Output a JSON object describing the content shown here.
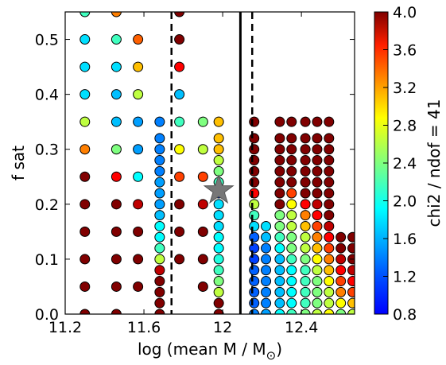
{
  "chart_data": {
    "type": "scatter",
    "xlabel": "log (mean M / M",
    "xlabel_sub": "⊙",
    "xlabel_close": ")",
    "ylabel": "f sat",
    "colorbar_label": "chi2 / ndof = 41",
    "xlim": [
      11.2,
      12.67
    ],
    "ylim": [
      0.0,
      0.55
    ],
    "xticks": [
      "11.2",
      "11.6",
      "12",
      "12.4"
    ],
    "xtick_values": [
      11.2,
      11.6,
      12.0,
      12.4
    ],
    "yticks": [
      "0.0",
      "0.1",
      "0.2",
      "0.3",
      "0.4",
      "0.5"
    ],
    "ytick_values": [
      0.0,
      0.1,
      0.2,
      0.3,
      0.4,
      0.5
    ],
    "colorbar_range": [
      0.8,
      4.0
    ],
    "colorbar_ticks": [
      "0.8",
      "1.2",
      "1.6",
      "2.0",
      "2.4",
      "2.8",
      "3.2",
      "3.6",
      "4.0"
    ],
    "colorbar_tick_values": [
      0.8,
      1.2,
      1.6,
      2.0,
      2.4,
      2.8,
      3.2,
      3.6,
      4.0
    ],
    "colormap": "jet",
    "vlines": [
      {
        "x": 11.74,
        "style": "dashed"
      },
      {
        "x": 12.09,
        "style": "solid"
      },
      {
        "x": 12.15,
        "style": "dashed"
      }
    ],
    "best_fit_marker": {
      "x": 11.98,
      "y": 0.225,
      "shape": "star",
      "color": "#777777"
    },
    "columns": [
      {
        "x": 11.3,
        "y": [
          0.0,
          0.05,
          0.1,
          0.15,
          0.2,
          0.25,
          0.3,
          0.35,
          0.4,
          0.45,
          0.5,
          0.55
        ],
        "c": [
          4.0,
          4.0,
          4.0,
          4.0,
          4.0,
          4.0,
          3.2,
          2.6,
          1.9,
          1.9,
          1.9,
          2.2
        ]
      },
      {
        "x": 11.46,
        "y": [
          0.0,
          0.05,
          0.1,
          0.15,
          0.2,
          0.25,
          0.3,
          0.35,
          0.4,
          0.45,
          0.5,
          0.55
        ],
        "c": [
          4.0,
          4.0,
          4.0,
          4.0,
          4.0,
          3.6,
          2.4,
          1.8,
          1.8,
          1.9,
          2.2,
          3.2
        ]
      },
      {
        "x": 11.57,
        "y": [
          0.05,
          0.1,
          0.15,
          0.2,
          0.25,
          0.3,
          0.35,
          0.4,
          0.45,
          0.5
        ],
        "c": [
          4.0,
          4.0,
          4.0,
          3.8,
          2.0,
          1.7,
          1.7,
          2.6,
          3.0,
          3.3
        ]
      },
      {
        "x": 11.68,
        "y": [
          0.0,
          0.02,
          0.04,
          0.06,
          0.08,
          0.1,
          0.12,
          0.14,
          0.16,
          0.18,
          0.2,
          0.22,
          0.24,
          0.26,
          0.28,
          0.3,
          0.32,
          0.35
        ],
        "c": [
          4.0,
          4.0,
          4.0,
          4.0,
          3.8,
          2.6,
          2.2,
          2.0,
          2.0,
          1.8,
          1.7,
          1.7,
          1.7,
          1.6,
          1.6,
          1.6,
          1.6,
          1.6
        ]
      },
      {
        "x": 11.78,
        "y": [
          0.1,
          0.15,
          0.2,
          0.25,
          0.3,
          0.35,
          0.4,
          0.45,
          0.5,
          0.55
        ],
        "c": [
          4.0,
          4.0,
          4.0,
          3.4,
          2.8,
          2.2,
          1.8,
          3.6,
          4.0,
          4.0
        ]
      },
      {
        "x": 11.9,
        "y": [
          0.05,
          0.1,
          0.15,
          0.2,
          0.25,
          0.3,
          0.35
        ],
        "c": [
          4.0,
          4.0,
          4.0,
          3.8,
          3.4,
          2.6,
          2.4
        ]
      },
      {
        "x": 11.98,
        "y": [
          0.0,
          0.02,
          0.04,
          0.06,
          0.08,
          0.1,
          0.12,
          0.14,
          0.16,
          0.18,
          0.2,
          0.22,
          0.24,
          0.26,
          0.28,
          0.3,
          0.32,
          0.35
        ],
        "c": [
          4.0,
          4.0,
          2.6,
          2.4,
          2.2,
          2.1,
          2.0,
          2.0,
          1.9,
          1.9,
          1.9,
          1.4,
          2.2,
          2.4,
          2.6,
          3.0,
          3.0,
          3.0
        ]
      },
      {
        "x": 12.16,
        "y": [
          0.0,
          0.02,
          0.04,
          0.06,
          0.08,
          0.1,
          0.12,
          0.14,
          0.16,
          0.18,
          0.2,
          0.22,
          0.24,
          0.26,
          0.28,
          0.3,
          0.32,
          0.35
        ],
        "c": [
          1.6,
          1.5,
          1.5,
          1.5,
          1.5,
          1.4,
          1.4,
          1.5,
          1.9,
          2.2,
          2.6,
          3.6,
          4.0,
          4.0,
          4.0,
          4.0,
          4.0,
          4.0
        ]
      },
      {
        "x": 12.22,
        "y": [
          0.0,
          0.02,
          0.04,
          0.06,
          0.08,
          0.1,
          0.12,
          0.14,
          0.16
        ],
        "c": [
          1.7,
          1.6,
          1.6,
          1.6,
          1.6,
          1.6,
          1.6,
          1.8,
          1.9
        ]
      },
      {
        "x": 12.29,
        "y": [
          0.0,
          0.02,
          0.04,
          0.06,
          0.08,
          0.1,
          0.12,
          0.14,
          0.16,
          0.18,
          0.2,
          0.22,
          0.24,
          0.26,
          0.28,
          0.3,
          0.32,
          0.35
        ],
        "c": [
          2.0,
          1.8,
          1.8,
          1.8,
          1.8,
          1.8,
          2.0,
          2.2,
          2.4,
          2.4,
          4.0,
          4.0,
          4.0,
          4.0,
          4.0,
          4.0,
          4.0,
          4.0
        ]
      },
      {
        "x": 12.35,
        "y": [
          0.0,
          0.02,
          0.04,
          0.06,
          0.08,
          0.1,
          0.12,
          0.14,
          0.16,
          0.18,
          0.2,
          0.22,
          0.24,
          0.26,
          0.28,
          0.3,
          0.32,
          0.35
        ],
        "c": [
          2.2,
          2.0,
          2.0,
          2.0,
          2.0,
          2.2,
          2.4,
          2.4,
          2.6,
          2.6,
          2.8,
          3.4,
          4.0,
          4.0,
          4.0,
          4.0,
          4.0,
          4.0
        ]
      },
      {
        "x": 12.42,
        "y": [
          0.0,
          0.02,
          0.04,
          0.06,
          0.08,
          0.1,
          0.12,
          0.14,
          0.16,
          0.18,
          0.2,
          0.22,
          0.24,
          0.26,
          0.28,
          0.3,
          0.32,
          0.35
        ],
        "c": [
          2.4,
          2.2,
          2.2,
          2.2,
          2.2,
          2.4,
          2.6,
          2.6,
          3.0,
          3.2,
          3.6,
          4.0,
          4.0,
          4.0,
          4.0,
          4.0,
          4.0,
          4.0
        ]
      },
      {
        "x": 12.48,
        "y": [
          0.0,
          0.02,
          0.04,
          0.06,
          0.08,
          0.1,
          0.12,
          0.14,
          0.16,
          0.18,
          0.2,
          0.22,
          0.24,
          0.26,
          0.28,
          0.3,
          0.32,
          0.35
        ],
        "c": [
          2.6,
          2.4,
          2.4,
          2.4,
          2.6,
          2.8,
          3.0,
          3.2,
          3.4,
          3.6,
          3.8,
          4.0,
          4.0,
          4.0,
          4.0,
          4.0,
          4.0,
          4.0
        ]
      },
      {
        "x": 12.54,
        "y": [
          0.0,
          0.02,
          0.04,
          0.06,
          0.08,
          0.1,
          0.12,
          0.14,
          0.16,
          0.18,
          0.2,
          0.22,
          0.24,
          0.26,
          0.28,
          0.3,
          0.32,
          0.35
        ],
        "c": [
          2.8,
          2.6,
          2.6,
          2.8,
          3.0,
          3.2,
          3.4,
          3.6,
          3.8,
          4.0,
          4.0,
          4.0,
          4.0,
          4.0,
          4.0,
          4.0,
          4.0,
          4.0
        ]
      },
      {
        "x": 12.6,
        "y": [
          0.0,
          0.02,
          0.04,
          0.06,
          0.08,
          0.1,
          0.12,
          0.14
        ],
        "c": [
          2.4,
          2.8,
          3.2,
          3.4,
          3.6,
          3.8,
          4.0,
          4.0
        ]
      },
      {
        "x": 12.66,
        "y": [
          0.0,
          0.02,
          0.04,
          0.06,
          0.08,
          0.1,
          0.12,
          0.14
        ],
        "c": [
          2.6,
          3.0,
          3.4,
          3.6,
          3.8,
          4.0,
          4.0,
          4.0
        ]
      }
    ]
  }
}
